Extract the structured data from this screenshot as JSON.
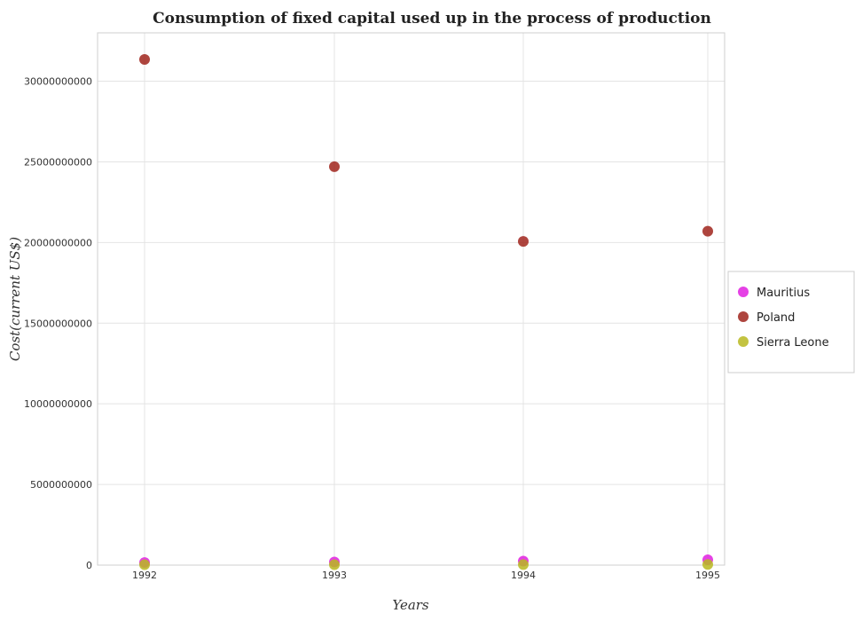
{
  "chart_data": {
    "type": "scatter",
    "title": "Consumption of fixed capital used up in the process of production",
    "xlabel": "Years",
    "ylabel": "Cost(current US$)",
    "x": [
      "1992",
      "1993",
      "1994",
      "1995"
    ],
    "ylim": [
      0,
      33000000000
    ],
    "yticks": [
      0,
      5000000000,
      10000000000,
      15000000000,
      20000000000,
      25000000000,
      30000000000
    ],
    "ytick_labels": [
      "0",
      "5000000000",
      "10000000000",
      "15000000000",
      "20000000000",
      "25000000000",
      "30000000000"
    ],
    "grid": true,
    "legend_position": "right",
    "series": [
      {
        "name": "Mauritius",
        "color": "#e020e0",
        "values": [
          160000000,
          190000000,
          250000000,
          330000000
        ]
      },
      {
        "name": "Poland",
        "color": "#a0241c",
        "values": [
          31350000000,
          24700000000,
          20070000000,
          20700000000
        ]
      },
      {
        "name": "Sierra Leone",
        "color": "#b8b820",
        "values": [
          25000000,
          30000000,
          35000000,
          40000000
        ]
      }
    ]
  }
}
